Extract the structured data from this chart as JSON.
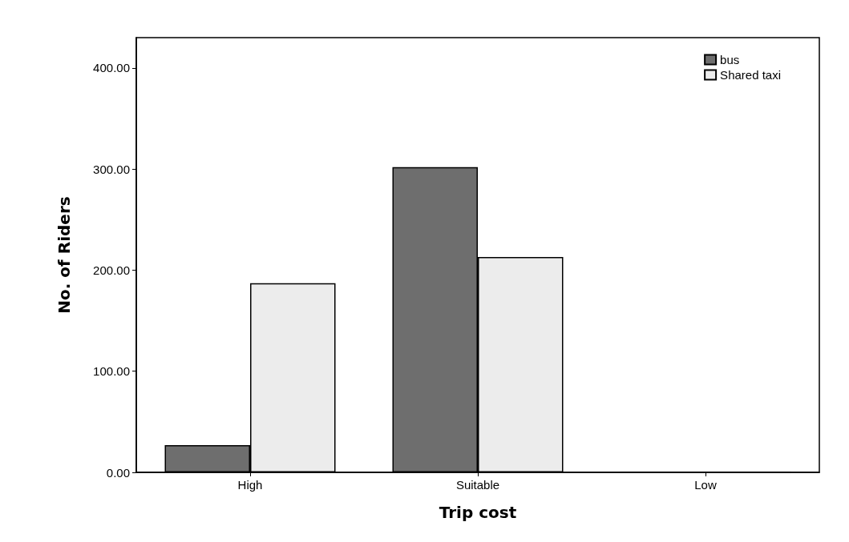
{
  "chart_data": {
    "type": "bar",
    "xlabel": "Trip cost",
    "ylabel": "No. of Riders",
    "categories": [
      "High",
      "Suitable",
      "Low"
    ],
    "series": [
      {
        "name": "bus",
        "color": "#6e6e6e",
        "values": [
          27,
          302,
          0
        ]
      },
      {
        "name": "Shared taxi",
        "color": "#ececec",
        "values": [
          187,
          213,
          0
        ]
      }
    ],
    "ylim": [
      0,
      430
    ],
    "yticks": [
      {
        "value": 0,
        "label": "0.00"
      },
      {
        "value": 100,
        "label": "100.00"
      },
      {
        "value": 200,
        "label": "200.00"
      },
      {
        "value": 300,
        "label": "300.00"
      },
      {
        "value": 400,
        "label": "400.00"
      }
    ],
    "grid": false,
    "legend": "top right"
  }
}
